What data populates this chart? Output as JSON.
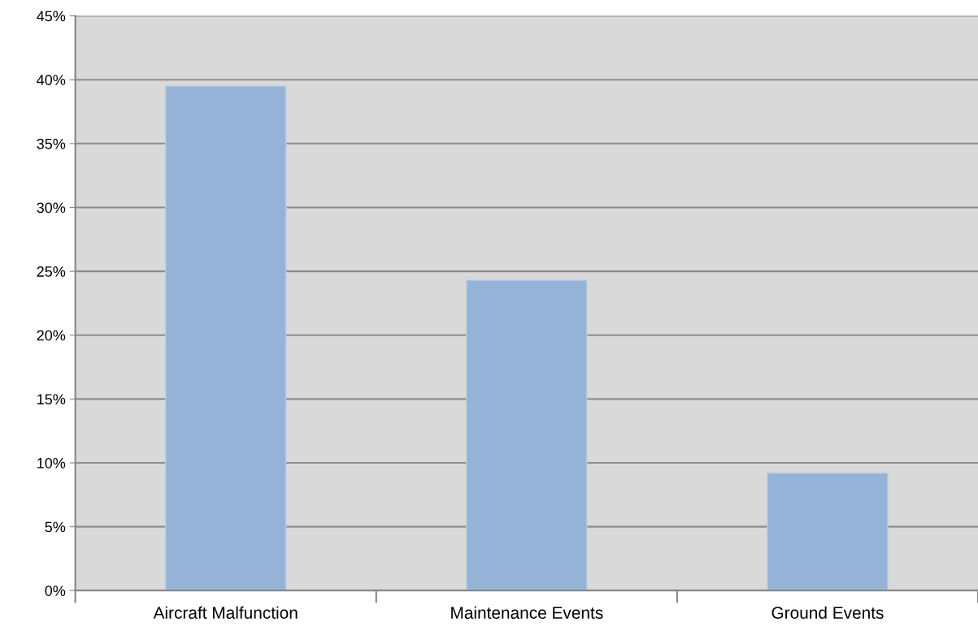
{
  "chart_data": {
    "type": "bar",
    "categories": [
      "Aircraft Malfunction",
      "Maintenance Events",
      "Ground Events"
    ],
    "values": [
      39.5,
      24.3,
      9.2
    ],
    "color": "#95b3d7",
    "ylim": [
      0,
      45
    ],
    "yticks": [
      {
        "value": 0,
        "label": "0%"
      },
      {
        "value": 5,
        "label": "5%"
      },
      {
        "value": 10,
        "label": "10%"
      },
      {
        "value": 15,
        "label": "15%"
      },
      {
        "value": 20,
        "label": "20%"
      },
      {
        "value": 25,
        "label": "25%"
      },
      {
        "value": 30,
        "label": "30%"
      },
      {
        "value": 35,
        "label": "35%"
      },
      {
        "value": 40,
        "label": "40%"
      },
      {
        "value": 45,
        "label": "45%"
      }
    ],
    "grid": "y"
  }
}
